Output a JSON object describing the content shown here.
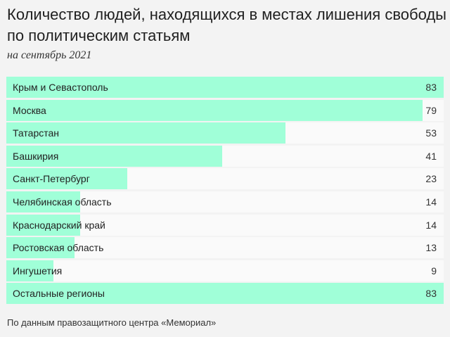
{
  "chart_data": {
    "type": "bar",
    "orientation": "horizontal",
    "title": "Количество людей, находящихся в местах лишения свободы по политическим статьям",
    "subtitle": "на сентябрь 2021",
    "categories": [
      "Крым и Севастополь",
      "Москва",
      "Татарстан",
      "Башкирия",
      "Санкт-Петербург",
      "Челябинская область",
      "Краснодарский край",
      "Ростовская область",
      "Ингушетия",
      "Остальные регионы"
    ],
    "values": [
      83,
      79,
      53,
      41,
      23,
      14,
      14,
      13,
      9,
      83
    ],
    "xlim": [
      0,
      83
    ],
    "bar_color": "#a0ffd8",
    "source": "По данным правозащитного центра «Мемориал»"
  }
}
